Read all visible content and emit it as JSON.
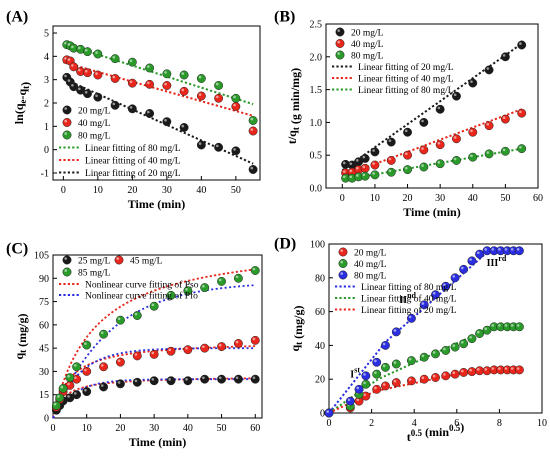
{
  "colors": {
    "black": "#1a1a1a",
    "red": "#e8261b",
    "green": "#2a9a2a",
    "blue": "#2a2ee0"
  },
  "chart_data": [
    {
      "type": "scatter",
      "label": "(A)",
      "xlabel": "Time (min)",
      "ylabel": "ln(q_e-q_t)",
      "xlim": [
        -3,
        57
      ],
      "ylim": [
        -1.3,
        5.3
      ],
      "xticks": [
        0,
        10,
        20,
        30,
        40,
        50
      ],
      "yticks": [
        -1,
        0,
        1,
        2,
        3,
        4,
        5
      ],
      "legend_position": "bottom-left",
      "series": [
        {
          "name": "20 mg/L",
          "color": "black",
          "kind": "scatter",
          "x": [
            1,
            2,
            3,
            5,
            7,
            10,
            15,
            20,
            25,
            30,
            35,
            40,
            45,
            50,
            55
          ],
          "y": [
            3.1,
            2.9,
            2.7,
            2.55,
            2.4,
            2.25,
            1.9,
            1.75,
            1.55,
            1.2,
            0.95,
            0.2,
            0.1,
            -0.05,
            -0.85
          ]
        },
        {
          "name": "40 mg/L",
          "color": "red",
          "kind": "scatter",
          "x": [
            1,
            2,
            3,
            5,
            7,
            10,
            15,
            20,
            25,
            30,
            35,
            40,
            45,
            50,
            55
          ],
          "y": [
            3.85,
            3.8,
            3.55,
            3.35,
            3.3,
            3.2,
            3.05,
            2.85,
            2.8,
            2.75,
            2.5,
            2.3,
            2.2,
            1.85,
            0.8
          ]
        },
        {
          "name": "80 mg/L",
          "color": "green",
          "kind": "scatter",
          "x": [
            1,
            2,
            3,
            5,
            7,
            10,
            15,
            20,
            25,
            30,
            35,
            40,
            45,
            50,
            55
          ],
          "y": [
            4.5,
            4.45,
            4.35,
            4.3,
            4.2,
            4.1,
            3.9,
            3.75,
            3.5,
            3.25,
            3.2,
            3.05,
            2.75,
            2.2,
            1.25
          ]
        },
        {
          "name": "Linear fitting of 80 mg/L",
          "color": "green",
          "kind": "line",
          "x": [
            0,
            55
          ],
          "y": [
            4.55,
            1.95
          ]
        },
        {
          "name": "Linear fitting of 40 mg/L",
          "color": "red",
          "kind": "line",
          "x": [
            0,
            55
          ],
          "y": [
            3.75,
            1.45
          ]
        },
        {
          "name": "Linear fitting of 20 mg/L",
          "color": "black",
          "kind": "line",
          "x": [
            0,
            55
          ],
          "y": [
            3.05,
            -0.6
          ]
        }
      ]
    },
    {
      "type": "scatter",
      "label": "(B)",
      "xlabel": "Time (min)",
      "ylabel": "t/q_t (g min/mg)",
      "xlim": [
        -5,
        60
      ],
      "ylim": [
        0,
        2.5
      ],
      "xticks": [
        0,
        10,
        20,
        30,
        40,
        50,
        60
      ],
      "yticks": [
        0.0,
        0.5,
        1.0,
        1.5,
        2.0,
        2.5
      ],
      "legend_position": "top-left",
      "series": [
        {
          "name": "20 mg/L",
          "color": "black",
          "kind": "scatter",
          "x": [
            1,
            3,
            5,
            7,
            10,
            15,
            20,
            25,
            30,
            35,
            40,
            45,
            50,
            55
          ],
          "y": [
            0.36,
            0.35,
            0.4,
            0.45,
            0.55,
            0.7,
            0.85,
            1.0,
            1.2,
            1.4,
            1.6,
            1.8,
            2.0,
            2.18
          ]
        },
        {
          "name": "40 mg/L",
          "color": "red",
          "kind": "scatter",
          "x": [
            1,
            3,
            5,
            7,
            10,
            15,
            20,
            25,
            30,
            35,
            40,
            45,
            50,
            55
          ],
          "y": [
            0.23,
            0.24,
            0.28,
            0.3,
            0.35,
            0.42,
            0.5,
            0.58,
            0.66,
            0.75,
            0.85,
            0.95,
            1.05,
            1.14
          ]
        },
        {
          "name": "80 mg/L",
          "color": "green",
          "kind": "scatter",
          "x": [
            1,
            3,
            5,
            7,
            10,
            15,
            20,
            25,
            30,
            35,
            40,
            45,
            50,
            55
          ],
          "y": [
            0.15,
            0.15,
            0.17,
            0.18,
            0.2,
            0.24,
            0.28,
            0.32,
            0.37,
            0.42,
            0.47,
            0.52,
            0.56,
            0.6
          ]
        },
        {
          "name": "Linear fitting of 20 mg/L",
          "color": "black",
          "kind": "line",
          "x": [
            0,
            55
          ],
          "y": [
            0.27,
            2.2
          ]
        },
        {
          "name": "Linear fitting of 40 mg/L",
          "color": "red",
          "kind": "line",
          "x": [
            0,
            55
          ],
          "y": [
            0.18,
            1.2
          ]
        },
        {
          "name": "Linear fitting of 80 mg/L",
          "color": "green",
          "kind": "line",
          "x": [
            0,
            55
          ],
          "y": [
            0.12,
            0.6
          ]
        }
      ]
    },
    {
      "type": "scatter",
      "label": "(C)",
      "xlabel": "Time (min)",
      "ylabel": "q_t (mg/g)",
      "xlim": [
        0,
        62
      ],
      "ylim": [
        0,
        105
      ],
      "xticks": [
        0,
        10,
        20,
        30,
        40,
        50,
        60
      ],
      "yticks": [
        0,
        15,
        30,
        45,
        60,
        75,
        90,
        105
      ],
      "legend_position": "top-left",
      "series": [
        {
          "name": "25 mg/L",
          "color": "black",
          "kind": "scatter",
          "x": [
            1,
            2,
            3,
            5,
            7,
            10,
            15,
            20,
            25,
            30,
            35,
            40,
            45,
            50,
            55,
            60
          ],
          "y": [
            5,
            8,
            11,
            13,
            15,
            17,
            20,
            22,
            23,
            24,
            24,
            24,
            25,
            25,
            25,
            25
          ]
        },
        {
          "name": "45 mg/L",
          "color": "red",
          "kind": "scatter",
          "x": [
            1,
            2,
            3,
            5,
            7,
            10,
            15,
            20,
            25,
            30,
            35,
            40,
            45,
            50,
            55,
            60
          ],
          "y": [
            7,
            12,
            17,
            21,
            25,
            30,
            33,
            36,
            40,
            41,
            43,
            44,
            45,
            46,
            48,
            50
          ]
        },
        {
          "name": "85 mg/L",
          "color": "green",
          "kind": "scatter",
          "x": [
            1,
            2,
            3,
            5,
            7,
            10,
            15,
            20,
            25,
            30,
            35,
            40,
            45,
            50,
            55,
            60
          ],
          "y": [
            8,
            13,
            19,
            26,
            33,
            47,
            54,
            63,
            66,
            72,
            79,
            82,
            84,
            88,
            90,
            95
          ]
        },
        {
          "name": "Nonlinear curve fitting of Pso",
          "color": "red",
          "kind": "pso",
          "curves": [
            {
              "qe": 27,
              "k": 0.0112
            },
            {
              "qe": 50,
              "k": 0.0042
            },
            {
              "qe": 115,
              "k": 0.00072
            }
          ]
        },
        {
          "name": "Nonlinear curve fitting of Pfo",
          "color": "blue",
          "kind": "pfo",
          "curves": [
            {
              "qe": 25,
              "k": 0.16
            },
            {
              "qe": 45,
              "k": 0.13
            },
            {
              "qe": 88,
              "k": 0.06
            }
          ]
        }
      ]
    },
    {
      "type": "scatter",
      "label": "(D)",
      "xlabel": "t^0.5 (min^0.5)",
      "ylabel": "q_t (mg/g)",
      "xlim": [
        0,
        10
      ],
      "ylim": [
        0,
        100
      ],
      "xticks": [
        0,
        2,
        4,
        6,
        8,
        10
      ],
      "yticks": [
        0,
        20,
        40,
        60,
        80,
        100
      ],
      "legend_position": "top-left",
      "annotations": [
        {
          "base": "I",
          "sup": "st",
          "x": 1.0,
          "y": 21
        },
        {
          "base": "II",
          "sup": "nd",
          "x": 3.3,
          "y": 65
        },
        {
          "base": "III",
          "sup": "rd",
          "x": 7.4,
          "y": 87
        }
      ],
      "series": [
        {
          "name": "20 mg/L",
          "color": "red",
          "kind": "scatter",
          "x": [
            0,
            1.0,
            1.41,
            1.73,
            2.24,
            2.65,
            3.16,
            3.87,
            4.47,
            5.0,
            5.48,
            5.92,
            6.32,
            6.71,
            7.07,
            7.42,
            7.75,
            8.06,
            8.37,
            8.66,
            8.94
          ],
          "y": [
            0,
            3,
            7,
            10,
            14,
            16,
            18,
            19,
            20,
            21,
            22,
            23,
            24,
            24.5,
            25,
            25,
            25.5,
            25.5,
            25.5,
            25.5,
            25.5
          ]
        },
        {
          "name": "40 mg/L",
          "color": "green",
          "kind": "scatter",
          "x": [
            0,
            1.0,
            1.41,
            1.73,
            2.24,
            2.65,
            3.16,
            3.87,
            4.47,
            5.0,
            5.48,
            5.92,
            6.32,
            6.71,
            7.07,
            7.42,
            7.75,
            8.06,
            8.37,
            8.66,
            8.94
          ],
          "y": [
            0,
            4,
            11,
            17,
            23,
            27,
            29,
            31,
            33,
            35,
            37,
            39,
            41,
            44,
            47,
            49,
            51,
            51,
            51,
            51,
            51
          ]
        },
        {
          "name": "80 mg/L",
          "color": "blue",
          "kind": "scatter",
          "x": [
            0,
            1.0,
            1.41,
            1.73,
            2.24,
            2.65,
            3.16,
            3.87,
            4.47,
            5.0,
            5.48,
            5.92,
            6.32,
            6.71,
            7.07,
            7.42,
            7.75,
            8.06,
            8.37,
            8.66,
            8.94
          ],
          "y": [
            0,
            7,
            14,
            22,
            30,
            40,
            48,
            56,
            64,
            70,
            75,
            80,
            85,
            90,
            94,
            96,
            96,
            96,
            96,
            96,
            96
          ]
        },
        {
          "name": "Linear fitting of 80 mg/L",
          "color": "blue",
          "kind": "polyline",
          "x": [
            0,
            2.65,
            7.6,
            9.0
          ],
          "y": [
            0,
            42,
            97,
            97
          ]
        },
        {
          "name": "Linear fitting of 40 mg/L",
          "color": "green",
          "kind": "polyline",
          "x": [
            0,
            2.3,
            7.7,
            9.0
          ],
          "y": [
            0,
            20,
            51,
            51
          ]
        },
        {
          "name": "Linear fitting of 20 mg/L",
          "color": "red",
          "kind": "polyline",
          "x": [
            0,
            2.2,
            7.0,
            9.0
          ],
          "y": [
            0,
            13,
            25.5,
            25.5
          ]
        }
      ]
    }
  ]
}
